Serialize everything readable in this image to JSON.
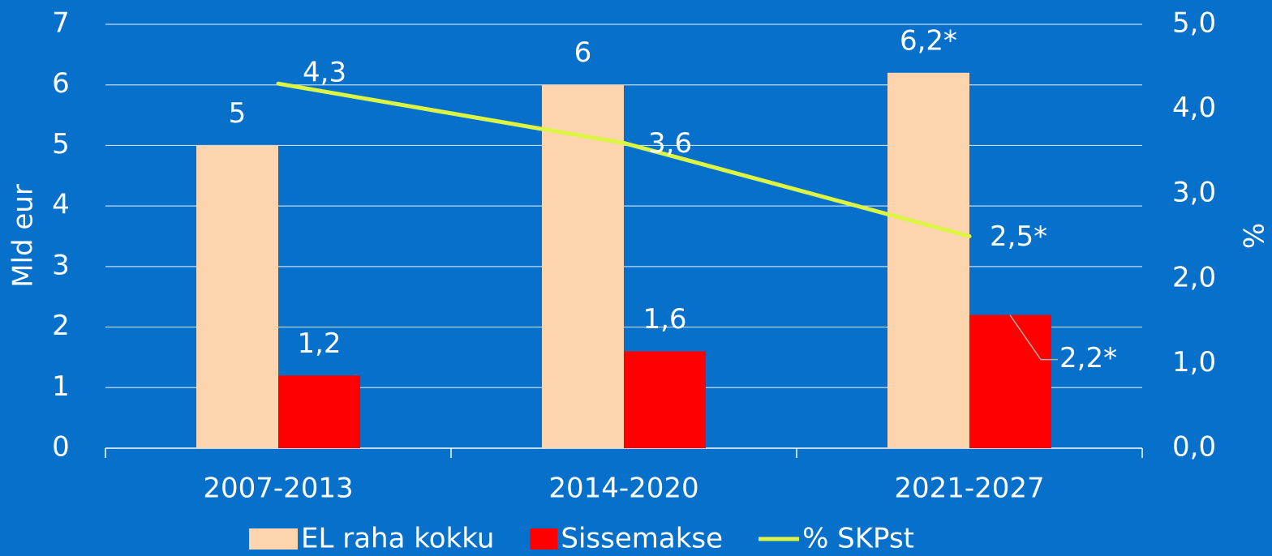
{
  "chart_data": {
    "type": "bar",
    "categories": [
      "2007-2013",
      "2014-2020",
      "2021-2027"
    ],
    "series": [
      {
        "name": "EL raha kokku",
        "type": "bar",
        "color": "#fcd5ae",
        "values": [
          5,
          6,
          6.2
        ],
        "value_labels": [
          "5",
          "6",
          "6,2*"
        ]
      },
      {
        "name": "Sissemakse",
        "type": "bar",
        "color": "#ff0000",
        "values": [
          1.2,
          1.6,
          2.2
        ],
        "value_labels": [
          "1,2",
          "1,6",
          "2,2*"
        ]
      },
      {
        "name": "% SKPst",
        "type": "line",
        "axis": "y2",
        "color": "#dcf545",
        "values": [
          4.3,
          3.6,
          2.5
        ],
        "value_labels": [
          "4,3",
          "3,6",
          "2,5*"
        ]
      }
    ],
    "ylabel": "Mld eur",
    "y2label": "%",
    "ylim": [
      0,
      7
    ],
    "yticks": [
      0,
      1,
      2,
      3,
      4,
      5,
      6,
      7
    ],
    "y2lim": [
      0,
      5
    ],
    "y2ticks": [
      {
        "value": 0,
        "label": "0,0"
      },
      {
        "value": 1,
        "label": "1,0"
      },
      {
        "value": 2,
        "label": "2,0"
      },
      {
        "value": 3,
        "label": "3,0"
      },
      {
        "value": 4,
        "label": "4,0"
      },
      {
        "value": 5,
        "label": "5,0"
      }
    ],
    "grid": true,
    "legend": "bottom"
  }
}
